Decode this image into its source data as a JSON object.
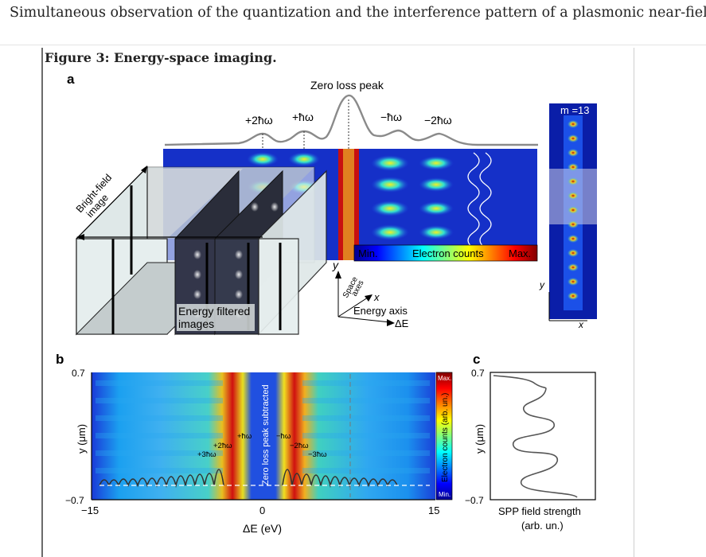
{
  "header": {
    "article_title": "Simultaneous observation of the quantization and the interference pattern of a plasmonic near-field"
  },
  "figure": {
    "caption": "Figure 3: Energy-space imaging."
  },
  "panel_a": {
    "letter": "a",
    "zero_loss_peak": "Zero loss peak",
    "peak_labels": [
      "+2ħω",
      "+ħω",
      "−ħω",
      "−2ħω"
    ],
    "bright_field_image": [
      "Bright-field",
      "image"
    ],
    "energy_filtered_images": [
      "Energy filtered",
      "images"
    ],
    "colorbar": {
      "min": "Min.",
      "title": "Electron counts",
      "max": "Max."
    },
    "space_axes": [
      "Space",
      "axes"
    ],
    "axis_y": "y",
    "axis_x": "x",
    "energy_axis": "Energy axis",
    "delta_e": "ΔE",
    "mode_label": "m =13",
    "inset_y": "y",
    "inset_x": "x"
  },
  "panel_b": {
    "letter": "b",
    "y_top": "0.7",
    "y_bottom": "−0.7",
    "y_label": "y (μm)",
    "x_ticks": [
      "−15",
      "0",
      "15"
    ],
    "x_label": "ΔE (eV)",
    "center_band_label": "Zero loss peak subtracted",
    "colorbar_max": "Max.",
    "colorbar_min": "Min.",
    "colorbar_title": "Electron counts (arb. un.)",
    "order_labels": [
      "+3ħω",
      "+2ħω",
      "+ħω",
      "−ħω",
      "−2ħω",
      "−3ħω"
    ]
  },
  "panel_c": {
    "letter": "c",
    "y_top": "0.7",
    "y_bottom": "−0.7",
    "y_label": "y (μm)",
    "x_label": [
      "SPP field strength",
      "(arb. un.)"
    ]
  }
}
